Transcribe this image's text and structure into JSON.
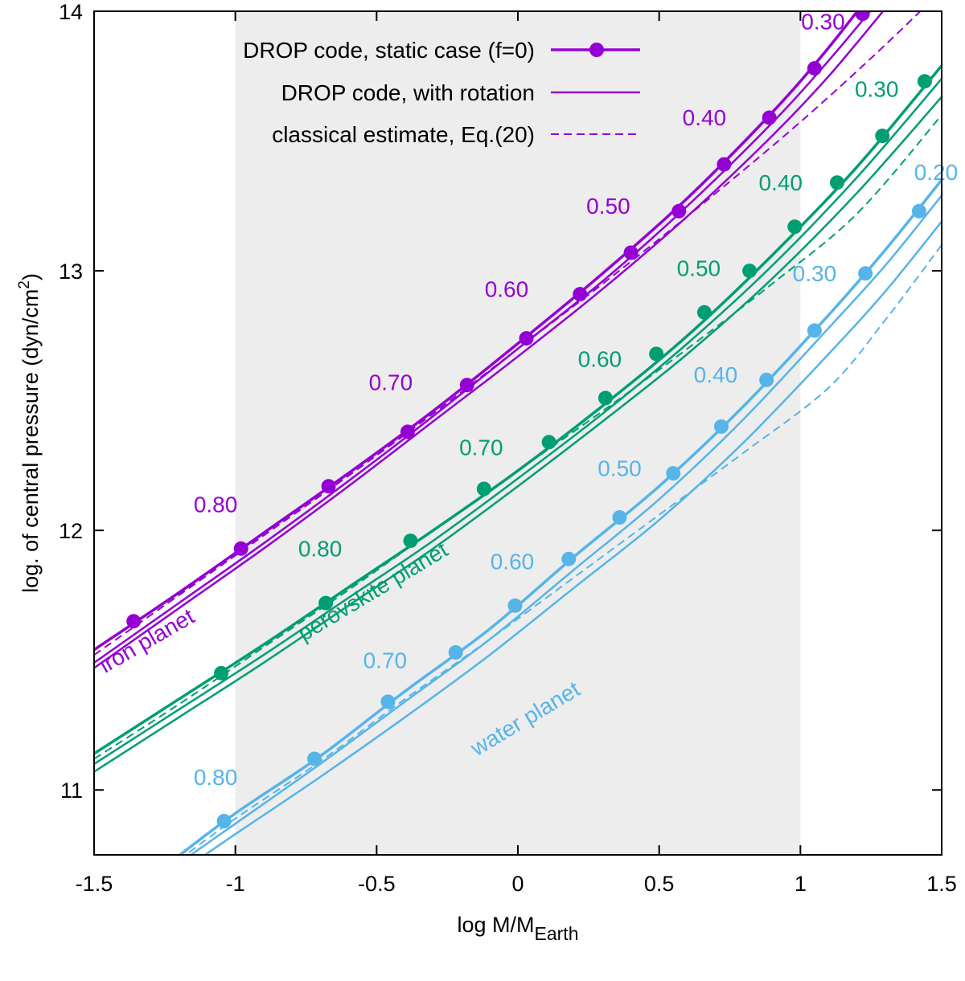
{
  "chart_data": {
    "type": "line",
    "xlabel": "log M/M",
    "xlabel_sub": "Earth",
    "ylabel": "log. of central pressure (dyn/cm",
    "ylabel_sup": "2",
    "ylabel_end": ")",
    "xlim": [
      -1.5,
      1.5
    ],
    "ylim": [
      10.75,
      14.0
    ],
    "x_ticks": [
      -1.5,
      -1,
      -0.5,
      0,
      0.5,
      1,
      1.5
    ],
    "x_tick_labels": [
      "-1.5",
      "-1",
      "-0.5",
      "0",
      "0.5",
      "1",
      "1.5"
    ],
    "y_ticks": [
      11,
      12,
      13,
      14
    ],
    "y_tick_labels": [
      "11",
      "12",
      "13",
      "14"
    ],
    "shaded_region": [
      -1,
      1
    ],
    "colors": {
      "iron": "#9400d3",
      "perovskite": "#009e73",
      "water": "#56b4e9",
      "shade": "#ededed",
      "axis": "#000000"
    },
    "legend": {
      "position": "top-left",
      "entries": [
        {
          "label": "DROP code, static case (f=0)",
          "style": "line-marker"
        },
        {
          "label": "DROP code, with rotation",
          "style": "line"
        },
        {
          "label": "classical estimate, Eq.(20)",
          "style": "dashed"
        }
      ]
    },
    "series": [
      {
        "name": "iron planet",
        "color_key": "iron",
        "label": "iron planet",
        "static_points": {
          "x": [
            -1.36,
            -0.98,
            -0.67,
            -0.39,
            -0.18,
            0.03,
            0.22,
            0.4,
            0.57,
            0.73,
            0.89,
            1.05,
            1.22
          ],
          "y": [
            11.65,
            11.93,
            12.17,
            12.38,
            12.56,
            12.74,
            12.91,
            13.07,
            13.23,
            13.41,
            13.59,
            13.78,
            13.99
          ]
        },
        "static_curve": {
          "x": [
            -1.5,
            -1.2,
            -0.9,
            -0.6,
            -0.3,
            0.0,
            0.3,
            0.6,
            0.9,
            1.1,
            1.3
          ],
          "y": [
            11.54,
            11.76,
            11.99,
            12.22,
            12.46,
            12.72,
            12.99,
            13.28,
            13.61,
            13.86,
            14.14
          ]
        },
        "rotation_curves": [
          {
            "x": [
              -1.5,
              -1.2,
              -0.9,
              -0.6,
              -0.3,
              0.0,
              0.3,
              0.6,
              0.9,
              1.1,
              1.3
            ],
            "y": [
              11.49,
              11.72,
              11.95,
              12.19,
              12.44,
              12.7,
              12.96,
              13.25,
              13.57,
              13.81,
              14.07
            ]
          },
          {
            "x": [
              -1.5,
              -1.2,
              -0.9,
              -0.6,
              -0.3,
              0.0,
              0.3,
              0.6,
              0.9,
              1.1,
              1.3
            ],
            "y": [
              11.47,
              11.7,
              11.93,
              12.17,
              12.42,
              12.67,
              12.93,
              13.21,
              13.52,
              13.75,
              14.01
            ]
          }
        ],
        "classical_curve": {
          "x": [
            -1.5,
            -1.2,
            -0.9,
            -0.6,
            -0.3,
            0.0,
            0.3,
            0.6,
            0.9,
            1.1,
            1.3,
            1.5
          ],
          "y": [
            11.52,
            11.75,
            11.98,
            12.21,
            12.45,
            12.7,
            12.95,
            13.21,
            13.48,
            13.67,
            13.87,
            14.08
          ]
        },
        "value_labels": [
          {
            "text": "0.30",
            "x": 1.08,
            "y": 13.93
          },
          {
            "text": "0.40",
            "x": 0.66,
            "y": 13.56
          },
          {
            "text": "0.50",
            "x": 0.32,
            "y": 13.22
          },
          {
            "text": "0.60",
            "x": -0.04,
            "y": 12.9
          },
          {
            "text": "0.70",
            "x": -0.45,
            "y": 12.54
          },
          {
            "text": "0.80",
            "x": -1.07,
            "y": 12.07
          }
        ]
      },
      {
        "name": "perovskite planet",
        "color_key": "perovskite",
        "label": "perovskite planet",
        "static_points": {
          "x": [
            -1.05,
            -0.68,
            -0.38,
            -0.12,
            0.11,
            0.31,
            0.49,
            0.66,
            0.82,
            0.98,
            1.13,
            1.29,
            1.44
          ],
          "y": [
            11.45,
            11.72,
            11.96,
            12.16,
            12.34,
            12.51,
            12.68,
            12.84,
            13.0,
            13.17,
            13.34,
            13.52,
            13.73
          ]
        },
        "static_curve": {
          "x": [
            -1.5,
            -1.2,
            -0.9,
            -0.6,
            -0.3,
            0.0,
            0.3,
            0.6,
            0.9,
            1.2,
            1.5
          ],
          "y": [
            11.14,
            11.35,
            11.56,
            11.78,
            12.0,
            12.23,
            12.48,
            12.75,
            13.06,
            13.4,
            13.79
          ]
        },
        "rotation_curves": [
          {
            "x": [
              -1.5,
              -1.2,
              -0.9,
              -0.6,
              -0.3,
              0.0,
              0.3,
              0.6,
              0.9,
              1.2,
              1.5
            ],
            "y": [
              11.1,
              11.31,
              11.52,
              11.74,
              11.96,
              12.2,
              12.45,
              12.72,
              13.02,
              13.36,
              13.74
            ]
          },
          {
            "x": [
              -1.5,
              -1.2,
              -0.9,
              -0.6,
              -0.3,
              0.0,
              0.3,
              0.6,
              0.9,
              1.2,
              1.5
            ],
            "y": [
              11.07,
              11.28,
              11.49,
              11.71,
              11.93,
              12.17,
              12.42,
              12.68,
              12.97,
              13.3,
              13.67
            ]
          }
        ],
        "classical_curve": {
          "x": [
            -1.5,
            -1.2,
            -0.9,
            -0.6,
            -0.3,
            0.0,
            0.3,
            0.6,
            0.9,
            1.2,
            1.5
          ],
          "y": [
            11.12,
            11.33,
            11.55,
            11.77,
            12.0,
            12.23,
            12.46,
            12.7,
            12.95,
            13.22,
            13.6
          ]
        },
        "value_labels": [
          {
            "text": "0.30",
            "x": 1.27,
            "y": 13.67
          },
          {
            "text": "0.40",
            "x": 0.93,
            "y": 13.31
          },
          {
            "text": "0.50",
            "x": 0.64,
            "y": 12.98
          },
          {
            "text": "0.60",
            "x": 0.29,
            "y": 12.63
          },
          {
            "text": "0.70",
            "x": -0.13,
            "y": 12.29
          },
          {
            "text": "0.80",
            "x": -0.7,
            "y": 11.9
          }
        ]
      },
      {
        "name": "water planet",
        "color_key": "water",
        "label": "water planet",
        "static_points": {
          "x": [
            -1.04,
            -0.72,
            -0.46,
            -0.22,
            -0.01,
            0.18,
            0.36,
            0.55,
            0.72,
            0.88,
            1.05,
            1.23,
            1.42
          ],
          "y": [
            10.88,
            11.12,
            11.34,
            11.53,
            11.71,
            11.89,
            12.05,
            12.22,
            12.4,
            12.58,
            12.77,
            12.99,
            13.23
          ]
        },
        "static_curve": {
          "x": [
            -1.22,
            -1.0,
            -0.7,
            -0.4,
            -0.1,
            0.2,
            0.5,
            0.8,
            1.1,
            1.3,
            1.5
          ],
          "y": [
            10.73,
            10.91,
            11.13,
            11.38,
            11.62,
            11.9,
            12.17,
            12.48,
            12.83,
            13.08,
            13.35
          ]
        },
        "rotation_curves": [
          {
            "x": [
              -1.17,
              -1.0,
              -0.7,
              -0.4,
              -0.1,
              0.2,
              0.5,
              0.8,
              1.1,
              1.3,
              1.5
            ],
            "y": [
              10.74,
              10.87,
              11.1,
              11.34,
              11.58,
              11.85,
              12.12,
              12.43,
              12.78,
              13.02,
              13.29
            ]
          },
          {
            "x": [
              -1.12,
              -1.0,
              -0.7,
              -0.4,
              -0.1,
              0.2,
              0.5,
              0.8,
              1.1,
              1.3,
              1.5
            ],
            "y": [
              10.74,
              10.83,
              11.05,
              11.28,
              11.52,
              11.78,
              12.04,
              12.34,
              12.68,
              12.92,
              13.19
            ]
          }
        ],
        "classical_curve": {
          "x": [
            -1.2,
            -1.0,
            -0.7,
            -0.4,
            -0.1,
            0.2,
            0.5,
            0.8,
            1.1,
            1.3,
            1.5
          ],
          "y": [
            10.73,
            10.89,
            11.11,
            11.35,
            11.58,
            11.82,
            12.06,
            12.3,
            12.55,
            12.81,
            13.1
          ]
        },
        "value_labels": [
          {
            "text": "0.20",
            "x": 1.48,
            "y": 13.35
          },
          {
            "text": "0.30",
            "x": 1.05,
            "y": 12.96
          },
          {
            "text": "0.40",
            "x": 0.7,
            "y": 12.57
          },
          {
            "text": "0.50",
            "x": 0.36,
            "y": 12.21
          },
          {
            "text": "0.60",
            "x": -0.02,
            "y": 11.85
          },
          {
            "text": "0.70",
            "x": -0.47,
            "y": 11.47
          },
          {
            "text": "0.80",
            "x": -1.07,
            "y": 11.02
          }
        ]
      }
    ],
    "planet_label_positions": [
      {
        "series": 0,
        "x": -1.3,
        "y": 11.55,
        "angle": -30
      },
      {
        "series": 1,
        "x": -0.5,
        "y": 11.74,
        "angle": -31
      },
      {
        "series": 2,
        "x": 0.04,
        "y": 11.25,
        "angle": -31
      }
    ]
  }
}
